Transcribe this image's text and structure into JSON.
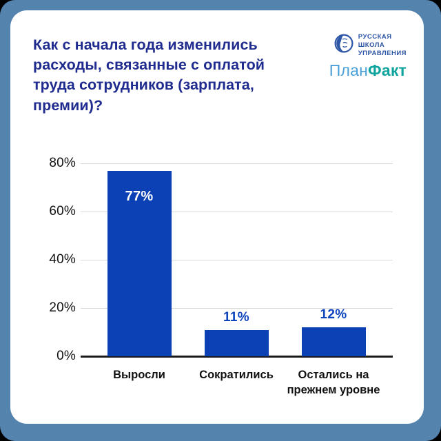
{
  "header": {
    "logos": {
      "rsu": {
        "name": "Русская Школа Управления",
        "lines": "РУССКАЯ\nШКОЛА\nУПРАВЛЕНИЯ",
        "color": "#2d55a5"
      },
      "planfact": {
        "part1": "План",
        "part2": "Факт",
        "part1_color": "#4ba0d8",
        "part2_color": "#0ea39c"
      }
    }
  },
  "colors": {
    "frame": "#5484ae",
    "card": "#ffffff",
    "title": "#1f2b8e",
    "bar": "#0b41b5",
    "value_label": "#0b44bd",
    "gridline": "#d9d9d9",
    "axis": "#1a1a1a"
  },
  "chart_data": {
    "type": "bar",
    "title": "Как с начала года изменились\nрасходы, связанные с оплатой\nтруда сотрудников (зарплата,\nпремии)?",
    "categories": [
      "Выросли",
      "Сократились",
      "Остались на\nпрежнем уровне"
    ],
    "values": [
      77,
      11,
      12
    ],
    "value_labels": [
      "77%",
      "11%",
      "12%"
    ],
    "yticks": [
      "80%",
      "60%",
      "40%",
      "20%",
      "0%"
    ],
    "ylim": [
      0,
      80
    ],
    "xlabel": "",
    "ylabel": "",
    "grid": "horizontal",
    "legend": "none",
    "bar_color": "#0b41b5"
  }
}
